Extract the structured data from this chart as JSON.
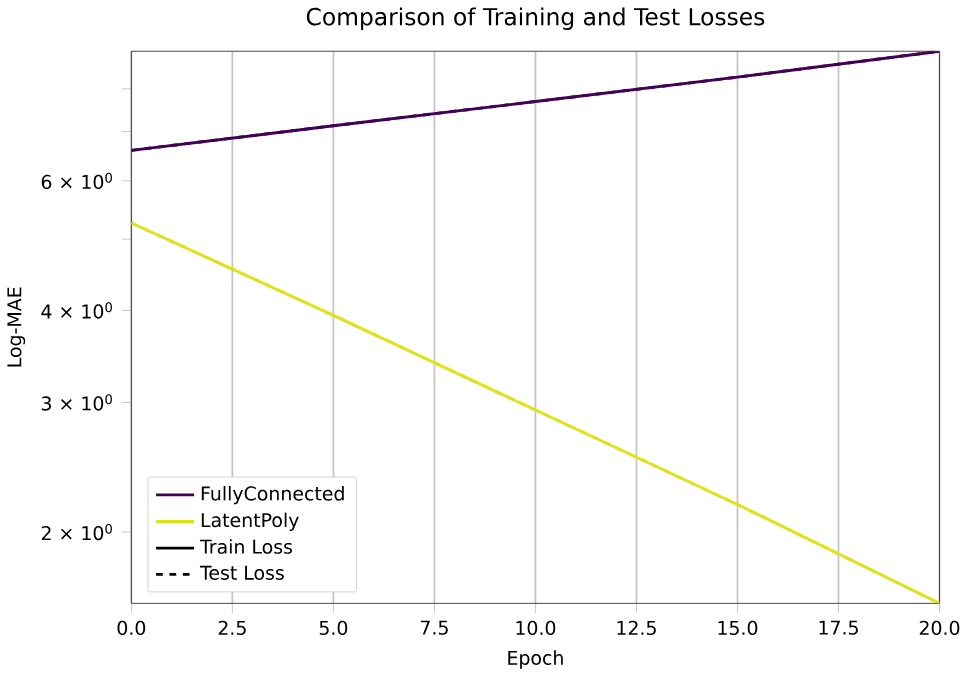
{
  "chart_data": {
    "type": "line",
    "title": "Comparison of Training and Test Losses",
    "xlabel": "Epoch",
    "ylabel": "Log-MAE",
    "log": "y",
    "grid": "x",
    "legend": "bottom left",
    "x": [
      0,
      5,
      10,
      15,
      20
    ],
    "xlim": [
      0,
      20
    ],
    "xticks": [
      {
        "value": 0,
        "label": "0.0"
      },
      {
        "value": 2.5,
        "label": "2.5"
      },
      {
        "value": 5,
        "label": "5.0"
      },
      {
        "value": 7.5,
        "label": "7.5"
      },
      {
        "value": 10,
        "label": "10.0"
      },
      {
        "value": 12.5,
        "label": "12.5"
      },
      {
        "value": 15,
        "label": "15.0"
      },
      {
        "value": 17.5,
        "label": "17.5"
      },
      {
        "value": 20,
        "label": "20.0"
      }
    ],
    "ylim": [
      1.6,
      9.0
    ],
    "yticks": [
      {
        "value": 2,
        "label": "2 × 10$^{0}$"
      },
      {
        "value": 3,
        "label": "3 × 10$^{0}$"
      },
      {
        "value": 4,
        "label": "4 × 10$^{0}$"
      },
      {
        "value": 5,
        "label": null
      },
      {
        "value": 6,
        "label": "6 × 10$^{0}$"
      },
      {
        "value": 7,
        "label": null
      },
      {
        "value": 8,
        "label": null
      }
    ],
    "series": [
      {
        "name": "FullyConnected",
        "color": "#440154",
        "line_style": "solid",
        "values": [
          6.6,
          7.13,
          7.69,
          8.3,
          9.0
        ]
      },
      {
        "name": "LatentPoly",
        "color": "#dde318",
        "line_style": "solid",
        "values": [
          5.26,
          3.94,
          2.93,
          2.18,
          1.6
        ]
      },
      {
        "color": "#440154",
        "line_style": "dashed",
        "values": [
          6.6,
          7.13,
          7.69,
          8.3,
          9.0
        ]
      },
      {
        "color": "#dde318",
        "line_style": "dashed",
        "values": [
          5.26,
          3.94,
          2.93,
          2.18,
          1.6
        ]
      },
      {
        "name": "Train Loss",
        "color": "#000000",
        "line_style": "solid",
        "values": [
          null,
          null,
          null,
          null,
          null
        ]
      },
      {
        "name": "Test Loss",
        "color": "#000000",
        "line_style": "dashed",
        "values": [
          null,
          null,
          null,
          null,
          null
        ]
      }
    ]
  }
}
